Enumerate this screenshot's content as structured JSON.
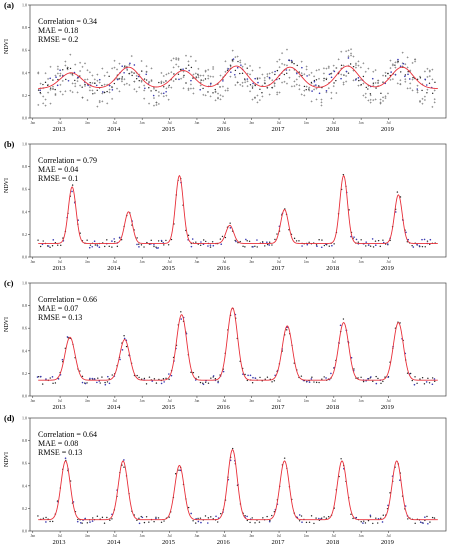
{
  "chart_data": [
    {
      "type": "line",
      "panel_label": "(a)",
      "stats": [
        "Correlation = 0.34",
        "MAE = 0.18",
        "RMSE = 0.2"
      ],
      "ylabel": "NDVI",
      "yticks": [
        "0.0",
        "0.2",
        "0.4",
        "0.6",
        "0.8",
        "1.0"
      ],
      "ylim": [
        0,
        1
      ],
      "year_labels": [
        "2013",
        "2014",
        "2015",
        "2016",
        "2017",
        "2018",
        "2019"
      ],
      "sub_tick_labels": [
        "Jan",
        "Jul"
      ],
      "peaks": [
        {
          "x": 2013.2,
          "y": 0.4
        },
        {
          "x": 2014.25,
          "y": 0.45
        },
        {
          "x": 2015.25,
          "y": 0.42
        },
        {
          "x": 2016.22,
          "y": 0.46
        },
        {
          "x": 2017.2,
          "y": 0.45
        },
        {
          "x": 2018.25,
          "y": 0.46
        },
        {
          "x": 2019.25,
          "y": 0.45
        }
      ],
      "baseline": 0.26,
      "peak_width": 0.28,
      "colors": {
        "fit": "#e8303a",
        "observed": "#3a3ab0",
        "reference": "#555555"
      }
    },
    {
      "type": "line",
      "panel_label": "(b)",
      "stats": [
        "Correlation = 0.79",
        "MAE = 0.04",
        "RMSE = 0.1"
      ],
      "ylabel": "NDVI",
      "yticks": [
        "0.0",
        "0.2",
        "0.4",
        "0.6",
        "0.8",
        "1.0"
      ],
      "ylim": [
        0,
        1
      ],
      "year_labels": [
        "2013",
        "2014",
        "2015",
        "2016",
        "2017",
        "2018",
        "2019"
      ],
      "sub_tick_labels": [
        "Jan",
        "Jul"
      ],
      "peaks": [
        {
          "x": 2013.22,
          "y": 0.62
        },
        {
          "x": 2014.25,
          "y": 0.4
        },
        {
          "x": 2015.18,
          "y": 0.72
        },
        {
          "x": 2016.1,
          "y": 0.28
        },
        {
          "x": 2017.1,
          "y": 0.42
        },
        {
          "x": 2018.18,
          "y": 0.72
        },
        {
          "x": 2019.18,
          "y": 0.55
        }
      ],
      "baseline": 0.12,
      "peak_width": 0.1,
      "colors": {
        "fit": "#e8303a",
        "observed": "#3a3ab0",
        "reference": "#555555"
      }
    },
    {
      "type": "line",
      "panel_label": "(c)",
      "stats": [
        "Correlation = 0.66",
        "MAE = 0.07",
        "RMSE = 0.13"
      ],
      "ylabel": "NDVI",
      "yticks": [
        "0.0",
        "0.2",
        "0.4",
        "0.6",
        "0.8",
        "1.0"
      ],
      "ylim": [
        0,
        1
      ],
      "year_labels": [
        "2013",
        "2014",
        "2015",
        "2016",
        "2017",
        "2018",
        "2019"
      ],
      "sub_tick_labels": [
        "Jan",
        "Jul"
      ],
      "peaks": [
        {
          "x": 2013.18,
          "y": 0.52
        },
        {
          "x": 2014.18,
          "y": 0.5
        },
        {
          "x": 2015.22,
          "y": 0.72
        },
        {
          "x": 2016.15,
          "y": 0.78
        },
        {
          "x": 2017.15,
          "y": 0.62
        },
        {
          "x": 2018.18,
          "y": 0.65
        },
        {
          "x": 2019.18,
          "y": 0.65
        }
      ],
      "baseline": 0.14,
      "peak_width": 0.13,
      "colors": {
        "fit": "#e8303a",
        "observed": "#3a3ab0",
        "reference": "#555555"
      }
    },
    {
      "type": "line",
      "panel_label": "(d)",
      "stats": [
        "Correlation = 0.64",
        "MAE = 0.08",
        "RMSE = 0.13"
      ],
      "ylabel": "NDVI",
      "yticks": [
        "0.0",
        "0.2",
        "0.4",
        "0.6",
        "0.8",
        "1.0"
      ],
      "ylim": [
        0,
        1
      ],
      "year_labels": [
        "2013",
        "2014",
        "2015",
        "2016",
        "2017",
        "2018",
        "2019"
      ],
      "sub_tick_labels": [
        "Jan",
        "Jul"
      ],
      "peaks": [
        {
          "x": 2013.1,
          "y": 0.62
        },
        {
          "x": 2014.15,
          "y": 0.62
        },
        {
          "x": 2015.18,
          "y": 0.58
        },
        {
          "x": 2016.15,
          "y": 0.72
        },
        {
          "x": 2017.1,
          "y": 0.62
        },
        {
          "x": 2018.15,
          "y": 0.62
        },
        {
          "x": 2019.15,
          "y": 0.62
        }
      ],
      "baseline": 0.1,
      "peak_width": 0.12,
      "colors": {
        "fit": "#e8303a",
        "observed": "#3a3ab0",
        "reference": "#555555"
      }
    }
  ]
}
